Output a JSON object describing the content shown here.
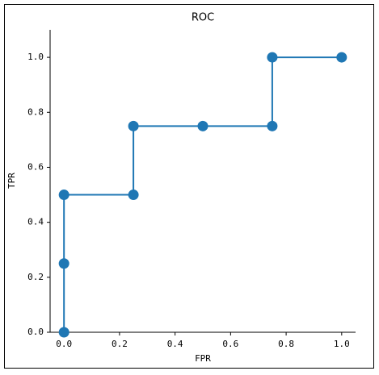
{
  "chart_data": {
    "type": "line",
    "title": "ROC",
    "x_label": "FPR",
    "y_label": "TPR",
    "x": [
      0.0,
      0.0,
      0.0,
      0.25,
      0.25,
      0.5,
      0.75,
      0.75,
      1.0
    ],
    "values": [
      0.0,
      0.25,
      0.5,
      0.5,
      0.75,
      0.75,
      0.75,
      1.0,
      1.0
    ],
    "color": "#1f77b4",
    "markers": true,
    "xlim": [
      -0.05,
      1.05
    ],
    "xticks": [
      {
        "value": 0,
        "label": "0.0"
      },
      {
        "value": 0.2,
        "label": "0.2"
      },
      {
        "value": 0.4,
        "label": "0.4"
      },
      {
        "value": 0.6,
        "label": "0.6"
      },
      {
        "value": 0.8,
        "label": "0.8"
      },
      {
        "value": 1,
        "label": "1.0"
      }
    ],
    "ylim": [
      0,
      1.1
    ],
    "yticks": [
      {
        "value": 0,
        "label": "0.0"
      },
      {
        "value": 0.2,
        "label": "0.2"
      },
      {
        "value": 0.4,
        "label": "0.4"
      },
      {
        "value": 0.6,
        "label": "0.6"
      },
      {
        "value": 0.8,
        "label": "0.8"
      },
      {
        "value": 1,
        "label": "1.0"
      }
    ],
    "grid": false
  }
}
